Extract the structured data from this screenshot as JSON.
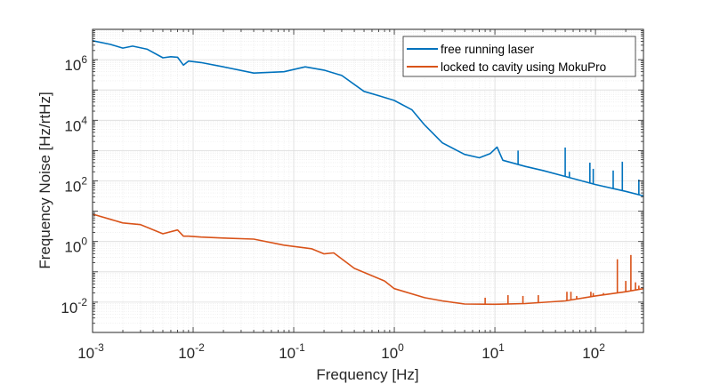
{
  "chart_data": {
    "type": "line",
    "xscale": "log",
    "yscale": "log",
    "xlabel": "Frequency [Hz]",
    "ylabel": "Frequency Noise [Hz/rtHz]",
    "xlim": [
      0.001,
      300
    ],
    "ylim": [
      0.001,
      10000000
    ],
    "grid": true,
    "minor_grid": true,
    "legend_position": "top-right",
    "x_ticks": [
      {
        "base": "10",
        "exp": "-3",
        "value": 0.001
      },
      {
        "base": "10",
        "exp": "-2",
        "value": 0.01
      },
      {
        "base": "10",
        "exp": "-1",
        "value": 0.1
      },
      {
        "base": "10",
        "exp": "0",
        "value": 1
      },
      {
        "base": "10",
        "exp": "1",
        "value": 10
      },
      {
        "base": "10",
        "exp": "2",
        "value": 100
      }
    ],
    "y_ticks": [
      {
        "base": "10",
        "exp": "-2",
        "value": 0.01
      },
      {
        "base": "10",
        "exp": "0",
        "value": 1
      },
      {
        "base": "10",
        "exp": "2",
        "value": 100
      },
      {
        "base": "10",
        "exp": "4",
        "value": 10000
      },
      {
        "base": "10",
        "exp": "6",
        "value": 1000000
      }
    ],
    "series": [
      {
        "name": "free running laser",
        "color": "#0072BD",
        "points": [
          [
            0.001,
            4200000
          ],
          [
            0.0015,
            3200000
          ],
          [
            0.002,
            2400000
          ],
          [
            0.0025,
            2800000
          ],
          [
            0.0035,
            2200000
          ],
          [
            0.005,
            1150000
          ],
          [
            0.006,
            1250000
          ],
          [
            0.007,
            1200000
          ],
          [
            0.008,
            660000
          ],
          [
            0.009,
            900000
          ],
          [
            0.012,
            800000
          ],
          [
            0.02,
            580000
          ],
          [
            0.04,
            360000
          ],
          [
            0.08,
            400000
          ],
          [
            0.13,
            580000
          ],
          [
            0.2,
            450000
          ],
          [
            0.3,
            300000
          ],
          [
            0.5,
            90000
          ],
          [
            0.7,
            65000
          ],
          [
            1,
            45000
          ],
          [
            1.5,
            22000
          ],
          [
            2,
            7000
          ],
          [
            3,
            1800
          ],
          [
            5,
            750
          ],
          [
            7,
            580
          ],
          [
            9,
            800
          ],
          [
            10.5,
            1300
          ],
          [
            12,
            480
          ],
          [
            15,
            390
          ],
          [
            20,
            300
          ],
          [
            30,
            220
          ],
          [
            50,
            140
          ],
          [
            100,
            76
          ],
          [
            200,
            45
          ],
          [
            300,
            32
          ]
        ],
        "spikes": [
          [
            17,
            1000
          ],
          [
            50,
            1260
          ],
          [
            55,
            200
          ],
          [
            88,
            400
          ],
          [
            95,
            250
          ],
          [
            150,
            220
          ],
          [
            185,
            430
          ],
          [
            270,
            110
          ]
        ]
      },
      {
        "name": "locked to cavity using MokuPro",
        "color": "#D95319",
        "points": [
          [
            0.001,
            8
          ],
          [
            0.002,
            4.1
          ],
          [
            0.003,
            3.6
          ],
          [
            0.005,
            1.8
          ],
          [
            0.007,
            2.4
          ],
          [
            0.008,
            1.5
          ],
          [
            0.009,
            1.5
          ],
          [
            0.012,
            1.4
          ],
          [
            0.02,
            1.3
          ],
          [
            0.04,
            1.2
          ],
          [
            0.08,
            0.76
          ],
          [
            0.15,
            0.58
          ],
          [
            0.2,
            0.39
          ],
          [
            0.25,
            0.42
          ],
          [
            0.4,
            0.13
          ],
          [
            0.8,
            0.05
          ],
          [
            1,
            0.028
          ],
          [
            2,
            0.014
          ],
          [
            3,
            0.011
          ],
          [
            5,
            0.0087
          ],
          [
            10,
            0.0085
          ],
          [
            20,
            0.009
          ],
          [
            50,
            0.011
          ],
          [
            100,
            0.016
          ],
          [
            200,
            0.022
          ],
          [
            300,
            0.028
          ]
        ],
        "spikes": [
          [
            8,
            0.014
          ],
          [
            13.5,
            0.017
          ],
          [
            19,
            0.016
          ],
          [
            27,
            0.017
          ],
          [
            52,
            0.022
          ],
          [
            57,
            0.022
          ],
          [
            65,
            0.016
          ],
          [
            90,
            0.022
          ],
          [
            95,
            0.02
          ],
          [
            120,
            0.02
          ],
          [
            165,
            0.26
          ],
          [
            200,
            0.05
          ],
          [
            225,
            0.36
          ],
          [
            250,
            0.045
          ],
          [
            270,
            0.035
          ]
        ]
      }
    ]
  }
}
